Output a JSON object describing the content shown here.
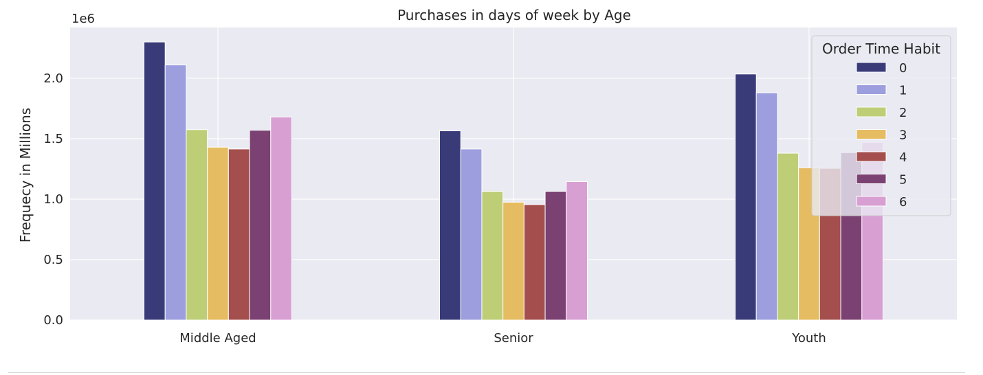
{
  "chart_data": {
    "type": "bar",
    "title": "Purchases in days of week by Age",
    "xlabel": "",
    "ylabel": "Frequecy in Millions",
    "offset_label": "1e6",
    "categories": [
      "Middle Aged",
      "Senior",
      "Youth"
    ],
    "ylim": [
      0,
      2.42
    ],
    "yticks": [
      0.0,
      0.5,
      1.0,
      1.5,
      2.0
    ],
    "ytick_labels": [
      "0.0",
      "0.5",
      "1.0",
      "1.5",
      "2.0"
    ],
    "grid": true,
    "legend": {
      "title": "Order Time Habit",
      "placement": "top-right"
    },
    "series": [
      {
        "name": "0",
        "color": "#393b79",
        "values": [
          2.3,
          1.565,
          2.035
        ]
      },
      {
        "name": "1",
        "color": "#9c9ede",
        "values": [
          2.11,
          1.415,
          1.88
        ]
      },
      {
        "name": "2",
        "color": "#bdce77",
        "values": [
          1.575,
          1.065,
          1.38
        ]
      },
      {
        "name": "3",
        "color": "#e6bc62",
        "values": [
          1.43,
          0.975,
          1.26
        ]
      },
      {
        "name": "4",
        "color": "#a44f4d",
        "values": [
          1.415,
          0.955,
          1.255
        ]
      },
      {
        "name": "5",
        "color": "#7b4172",
        "values": [
          1.57,
          1.065,
          1.385
        ]
      },
      {
        "name": "6",
        "color": "#d89fd3",
        "values": [
          1.68,
          1.145,
          1.47
        ]
      }
    ]
  }
}
